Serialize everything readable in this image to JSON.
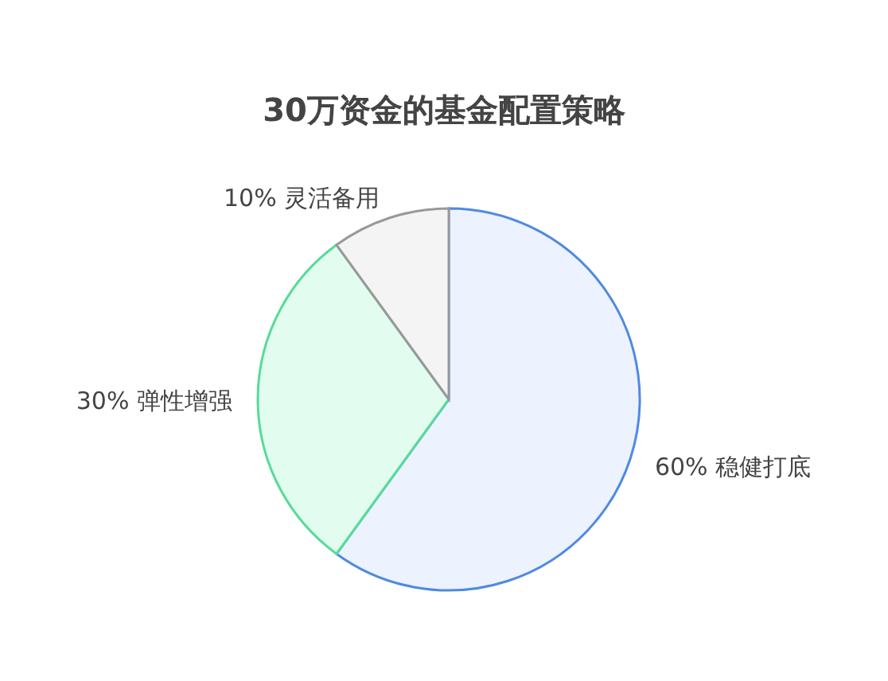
{
  "chart_data": {
    "type": "pie",
    "title": "30万资金的基金配置策略",
    "categories": [
      "稳健打底",
      "弹性增强",
      "灵活备用"
    ],
    "values": [
      60,
      30,
      10
    ],
    "colors": [
      "#ecf3fe",
      "#e2fcef",
      "#f4f4f4"
    ],
    "value_labels": [
      "60%",
      "30%",
      "10%"
    ]
  }
}
